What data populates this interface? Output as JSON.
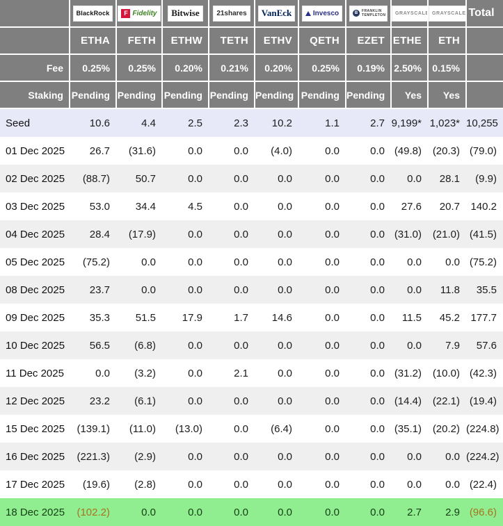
{
  "table": {
    "corner_label": "",
    "total_label": "Total",
    "fee_label": "Fee",
    "staking_label": "Staking",
    "funds": [
      {
        "provider": "BlackRock",
        "logo": "blackrock",
        "ticker": "ETHA",
        "fee": "0.25%",
        "staking": "Pending"
      },
      {
        "provider": "Fidelity",
        "logo": "fidelity",
        "ticker": "FETH",
        "fee": "0.25%",
        "staking": "Pending"
      },
      {
        "provider": "Bitwise",
        "logo": "bitwise",
        "ticker": "ETHW",
        "fee": "0.20%",
        "staking": "Pending"
      },
      {
        "provider": "21shares",
        "logo": "21shares",
        "ticker": "TETH",
        "fee": "0.21%",
        "staking": "Pending"
      },
      {
        "provider": "VanEck",
        "logo": "vaneck",
        "ticker": "ETHV",
        "fee": "0.20%",
        "staking": "Pending"
      },
      {
        "provider": "Invesco",
        "logo": "invesco",
        "ticker": "QETH",
        "fee": "0.25%",
        "staking": "Pending"
      },
      {
        "provider": "FRANKLIN TEMPLETON",
        "logo": "franklin",
        "ticker": "EZET",
        "fee": "0.19%",
        "staking": "Pending"
      },
      {
        "provider": "GRAYSCALE",
        "logo": "grayscale",
        "ticker": "ETHE",
        "fee": "2.50%",
        "staking": "Yes"
      },
      {
        "provider": "GRAYSCALE",
        "logo": "grayscale",
        "ticker": "ETH",
        "fee": "0.15%",
        "staking": "Yes"
      }
    ],
    "rows": [
      {
        "label": "Seed",
        "highlight": "seed",
        "values": [
          "10.6",
          "4.4",
          "2.5",
          "2.3",
          "10.2",
          "1.1",
          "2.7",
          "9,199*",
          "1,023*",
          "10,255"
        ]
      },
      {
        "label": "01 Dec 2025",
        "highlight": "",
        "values": [
          "26.7",
          "(31.6)",
          "0.0",
          "0.0",
          "(4.0)",
          "0.0",
          "0.0",
          "(49.8)",
          "(20.3)",
          "(79.0)"
        ]
      },
      {
        "label": "02 Dec 2025",
        "highlight": "",
        "values": [
          "(88.7)",
          "50.7",
          "0.0",
          "0.0",
          "0.0",
          "0.0",
          "0.0",
          "0.0",
          "28.1",
          "(9.9)"
        ]
      },
      {
        "label": "03 Dec 2025",
        "highlight": "",
        "values": [
          "53.0",
          "34.4",
          "4.5",
          "0.0",
          "0.0",
          "0.0",
          "0.0",
          "27.6",
          "20.7",
          "140.2"
        ]
      },
      {
        "label": "04 Dec 2025",
        "highlight": "",
        "values": [
          "28.4",
          "(17.9)",
          "0.0",
          "0.0",
          "0.0",
          "0.0",
          "0.0",
          "(31.0)",
          "(21.0)",
          "(41.5)"
        ]
      },
      {
        "label": "05 Dec 2025",
        "highlight": "",
        "values": [
          "(75.2)",
          "0.0",
          "0.0",
          "0.0",
          "0.0",
          "0.0",
          "0.0",
          "0.0",
          "0.0",
          "(75.2)"
        ]
      },
      {
        "label": "08 Dec 2025",
        "highlight": "",
        "values": [
          "23.7",
          "0.0",
          "0.0",
          "0.0",
          "0.0",
          "0.0",
          "0.0",
          "0.0",
          "11.8",
          "35.5"
        ]
      },
      {
        "label": "09 Dec 2025",
        "highlight": "",
        "values": [
          "35.3",
          "51.5",
          "17.9",
          "1.7",
          "14.6",
          "0.0",
          "0.0",
          "11.5",
          "45.2",
          "177.7"
        ]
      },
      {
        "label": "10 Dec 2025",
        "highlight": "",
        "values": [
          "56.5",
          "(6.8)",
          "0.0",
          "0.0",
          "0.0",
          "0.0",
          "0.0",
          "0.0",
          "7.9",
          "57.6"
        ]
      },
      {
        "label": "11 Dec 2025",
        "highlight": "",
        "values": [
          "0.0",
          "(3.2)",
          "0.0",
          "2.1",
          "0.0",
          "0.0",
          "0.0",
          "(31.2)",
          "(10.0)",
          "(42.3)"
        ]
      },
      {
        "label": "12 Dec 2025",
        "highlight": "",
        "values": [
          "23.2",
          "(6.1)",
          "0.0",
          "0.0",
          "0.0",
          "0.0",
          "0.0",
          "(14.4)",
          "(22.1)",
          "(19.4)"
        ]
      },
      {
        "label": "15 Dec 2025",
        "highlight": "",
        "values": [
          "(139.1)",
          "(11.0)",
          "(13.0)",
          "0.0",
          "(6.4)",
          "0.0",
          "0.0",
          "(35.1)",
          "(20.2)",
          "(224.8)"
        ]
      },
      {
        "label": "16 Dec 2025",
        "highlight": "",
        "values": [
          "(221.3)",
          "(2.9)",
          "0.0",
          "0.0",
          "0.0",
          "0.0",
          "0.0",
          "0.0",
          "0.0",
          "(224.2)"
        ]
      },
      {
        "label": "17 Dec 2025",
        "highlight": "",
        "values": [
          "(19.6)",
          "(2.8)",
          "0.0",
          "0.0",
          "0.0",
          "0.0",
          "0.0",
          "0.0",
          "0.0",
          "(22.4)"
        ]
      },
      {
        "label": "18 Dec 2025",
        "highlight": "green",
        "values": [
          "(102.2)",
          "0.0",
          "0.0",
          "0.0",
          "0.0",
          "0.0",
          "0.0",
          "2.7",
          "2.9",
          "(96.6)"
        ]
      }
    ]
  },
  "colors": {
    "header_bg": "#7f7f7f",
    "stripe_bg": "#efefef",
    "seed_row_bg": "#e7e9f8",
    "today_row_bg": "#90ee90",
    "negative_text": "#cd3642",
    "negative_on_green_text": "#a8731d"
  }
}
